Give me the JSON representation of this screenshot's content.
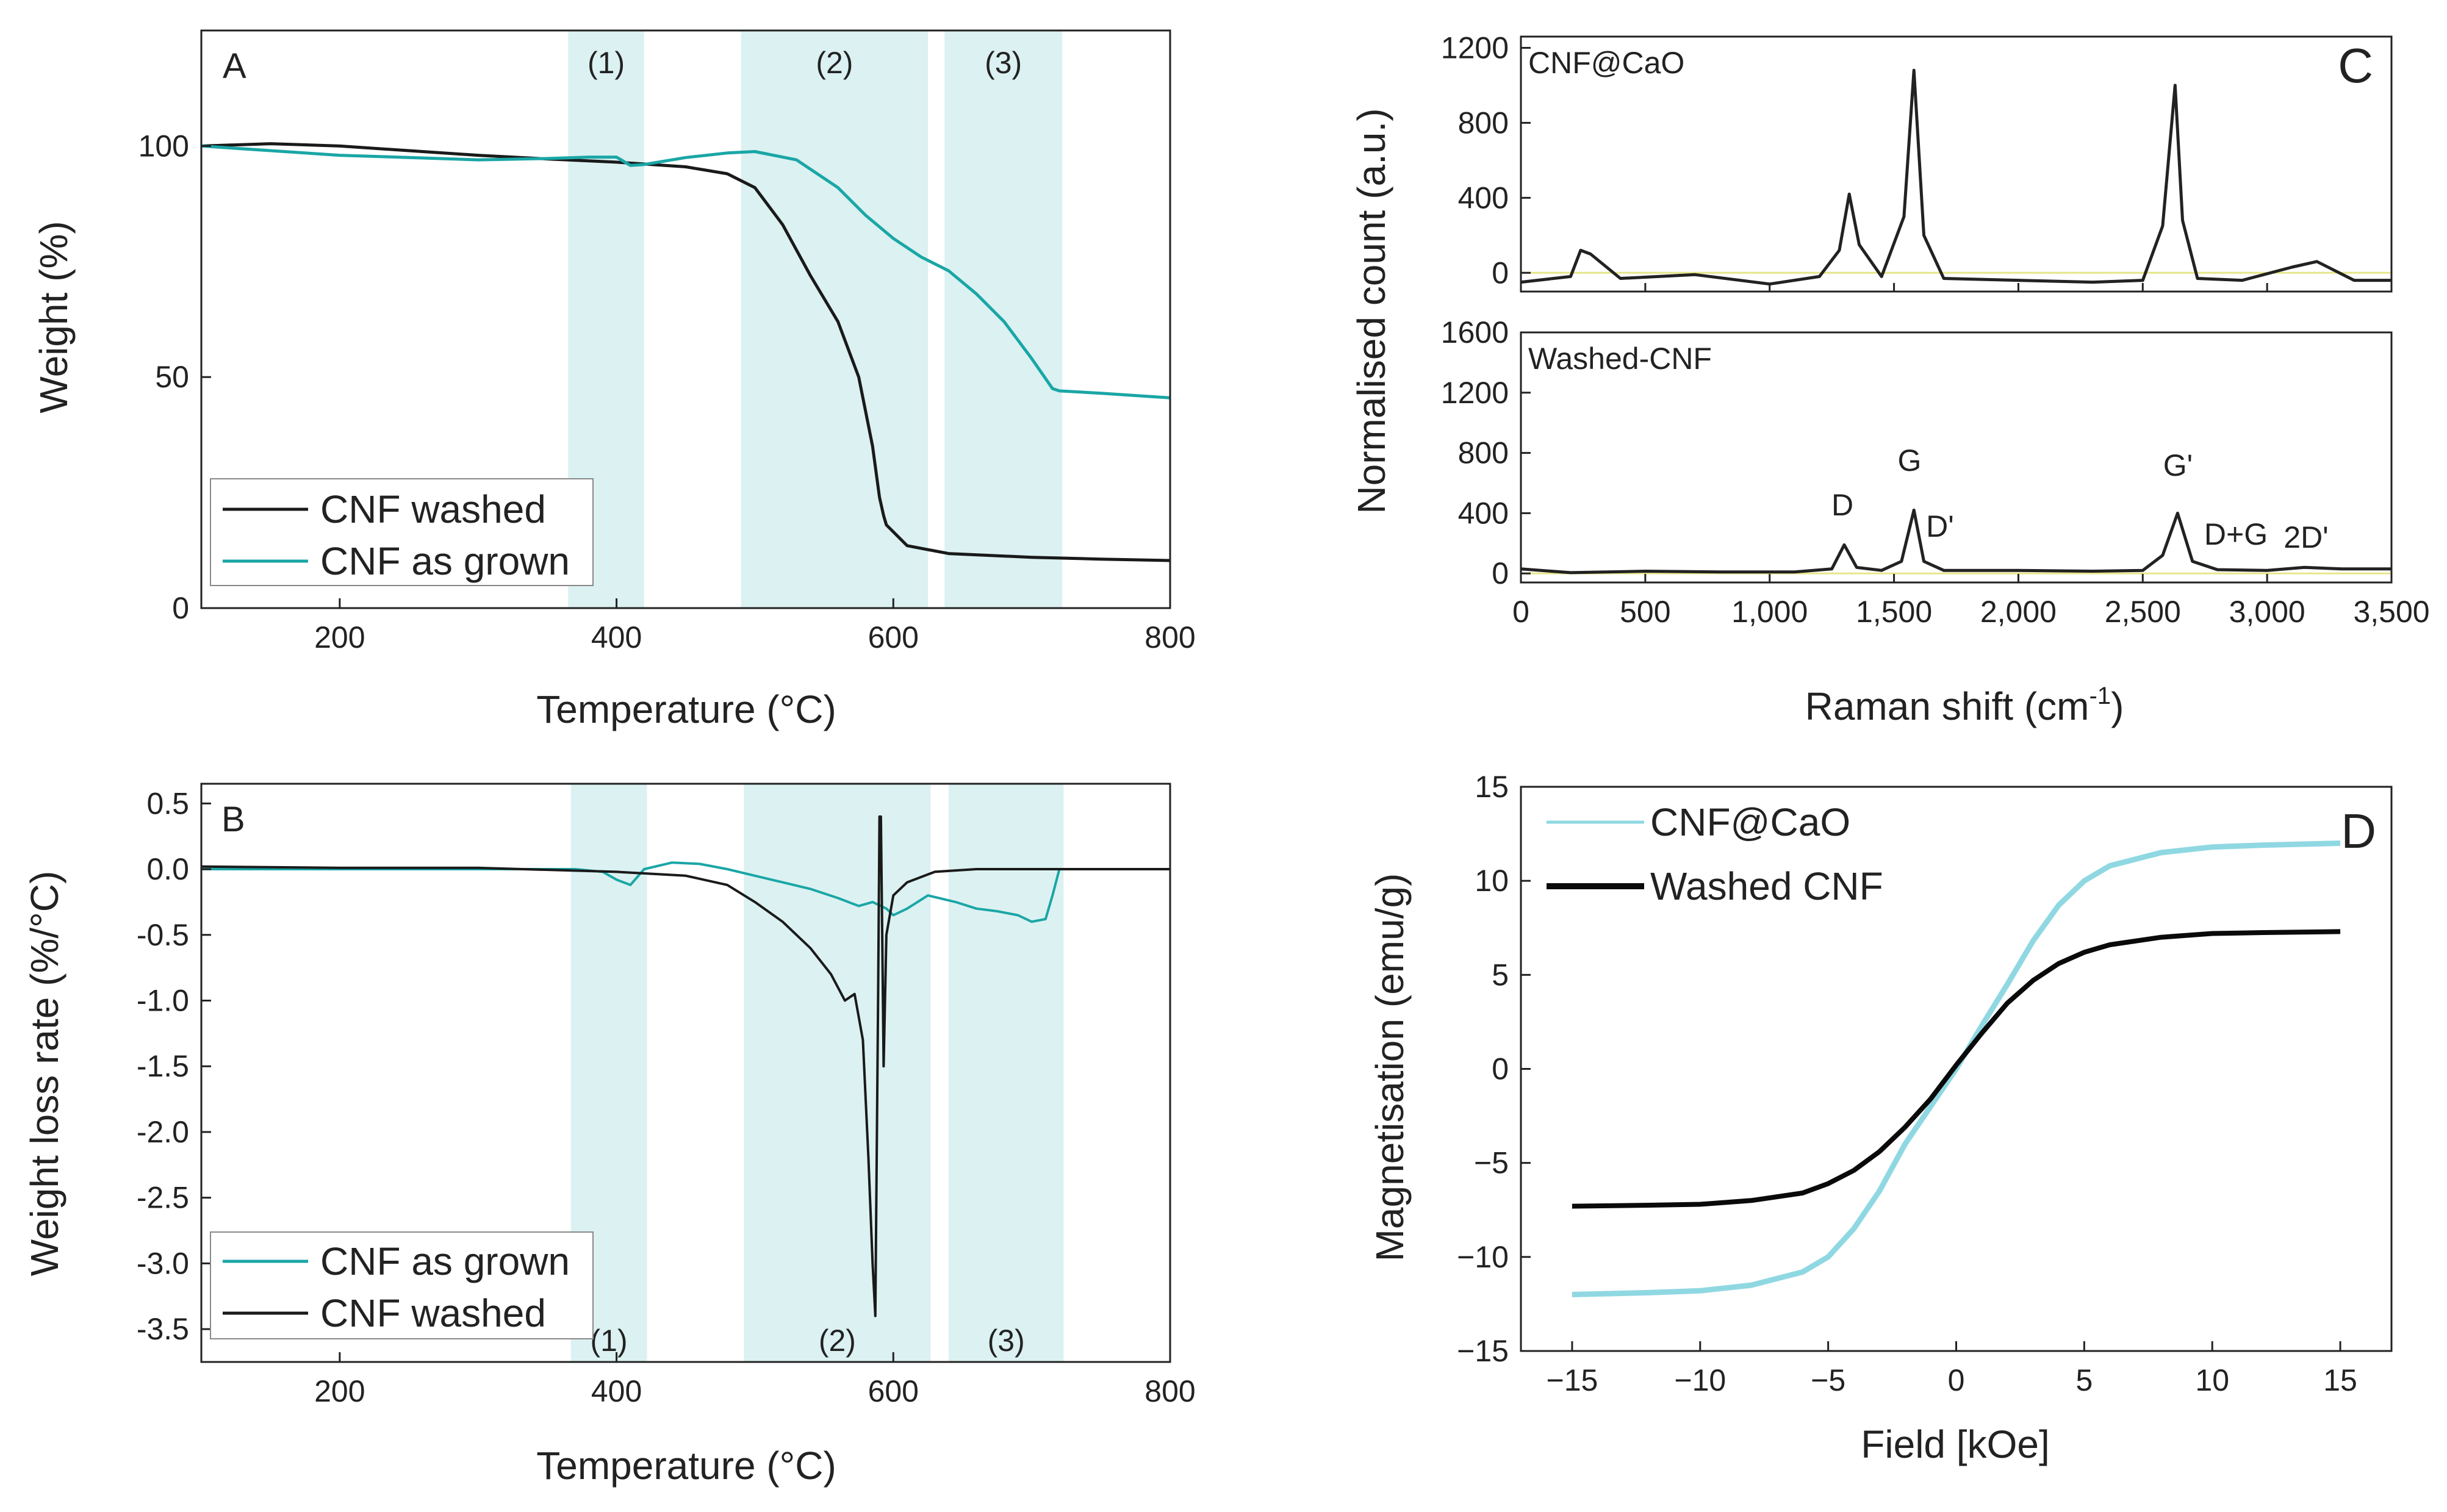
{
  "chart_data": [
    {
      "panel": "A",
      "type": "line",
      "panel_label": "A",
      "xlabel": "Temperature (°C)",
      "ylabel": "Weight (%)",
      "xlim": [
        100,
        800
      ],
      "ylim": [
        0,
        125
      ],
      "xticks": [
        200,
        400,
        600,
        800
      ],
      "yticks": [
        0,
        50,
        100
      ],
      "regions": [
        {
          "label": "(1)",
          "range": [
            365,
            420
          ]
        },
        {
          "label": "(2)",
          "range": [
            490,
            625
          ]
        },
        {
          "label": "(3)",
          "range": [
            637,
            722
          ]
        }
      ],
      "legend_position": "bottom-left",
      "series": [
        {
          "name": "CNF washed",
          "color": "#1a1a1a",
          "x": [
            100,
            150,
            200,
            250,
            300,
            350,
            400,
            450,
            480,
            500,
            520,
            540,
            560,
            575,
            585,
            590,
            593,
            595,
            610,
            640,
            700,
            750,
            800
          ],
          "y": [
            100,
            100.5,
            100,
            99,
            98,
            97.2,
            96.5,
            95.5,
            94,
            91,
            83,
            72,
            62,
            50,
            35,
            24,
            20,
            18,
            13.5,
            11.8,
            11,
            10.6,
            10.3
          ]
        },
        {
          "name": "CNF as grown",
          "color": "#1aa6a6",
          "x": [
            100,
            150,
            200,
            250,
            300,
            350,
            380,
            400,
            410,
            420,
            450,
            480,
            500,
            530,
            560,
            580,
            600,
            620,
            640,
            660,
            680,
            700,
            715,
            720,
            750,
            800
          ],
          "y": [
            100,
            99,
            98,
            97.5,
            97,
            97.3,
            97.6,
            97.6,
            95.8,
            96,
            97.5,
            98.5,
            98.8,
            97,
            91,
            85,
            80,
            76,
            73,
            68,
            62,
            54,
            47.5,
            47,
            46.5,
            45.5
          ]
        }
      ]
    },
    {
      "panel": "B",
      "type": "line",
      "panel_label": "B",
      "xlabel": "Temperature (°C)",
      "ylabel": "Weight loss rate (%/°C)",
      "xlim": [
        100,
        800
      ],
      "ylim": [
        -3.75,
        0.65
      ],
      "xticks": [
        200,
        400,
        600,
        800
      ],
      "yticks": [
        0.5,
        0.0,
        -0.5,
        -1.0,
        -1.5,
        -2.0,
        -2.5,
        -3.0,
        -3.5
      ],
      "ytick_labels": [
        "0.5",
        "0.0",
        "-0.5",
        "-1.0",
        "-1.5",
        "-2.0",
        "-2.5",
        "-3.0",
        "-3.5"
      ],
      "regions": [
        {
          "label": "(1)",
          "range": [
            367,
            422
          ]
        },
        {
          "label": "(2)",
          "range": [
            492,
            627
          ]
        },
        {
          "label": "(3)",
          "range": [
            640,
            723
          ]
        }
      ],
      "legend_position": "bottom-left",
      "series": [
        {
          "name": "CNF as grown",
          "color": "#1aa6a6",
          "x": [
            100,
            200,
            300,
            370,
            390,
            400,
            410,
            420,
            440,
            460,
            480,
            500,
            520,
            540,
            560,
            575,
            585,
            595,
            600,
            610,
            625,
            645,
            660,
            675,
            690,
            700,
            710,
            715,
            720,
            740,
            800
          ],
          "y": [
            0,
            0,
            0,
            0,
            -0.02,
            -0.08,
            -0.12,
            0,
            0.05,
            0.04,
            0,
            -0.05,
            -0.1,
            -0.15,
            -0.22,
            -0.28,
            -0.25,
            -0.3,
            -0.35,
            -0.3,
            -0.2,
            -0.25,
            -0.3,
            -0.32,
            -0.35,
            -0.4,
            -0.38,
            -0.2,
            0,
            0,
            0
          ]
        },
        {
          "name": "CNF washed",
          "color": "#1a1a1a",
          "x": [
            100,
            200,
            300,
            400,
            450,
            480,
            500,
            520,
            540,
            555,
            565,
            572,
            578,
            582,
            585,
            587,
            589,
            590,
            591,
            592,
            593,
            595,
            600,
            610,
            630,
            660,
            700,
            800
          ],
          "y": [
            0.02,
            0.01,
            0.01,
            -0.02,
            -0.05,
            -0.12,
            -0.25,
            -0.4,
            -0.6,
            -0.8,
            -1.0,
            -0.95,
            -1.3,
            -2.2,
            -3.0,
            -3.4,
            -1.0,
            0.4,
            0.4,
            -0.5,
            -1.5,
            -0.5,
            -0.2,
            -0.1,
            -0.02,
            0,
            0,
            0
          ]
        }
      ]
    },
    {
      "panel": "C",
      "type": "line",
      "panel_label": "C",
      "xlabel": "Raman shift (cm",
      "xlabel_sup": "-1",
      "xlabel_end": ")",
      "ylabel": "Normalised count (a.u.)",
      "xlim": [
        0,
        3500
      ],
      "xticks": [
        0,
        500,
        1000,
        1500,
        2000,
        2500,
        3000,
        3500
      ],
      "xtick_labels": [
        "0",
        "500",
        "1,000",
        "1,500",
        "2,000",
        "2,500",
        "3,000",
        "3,500"
      ],
      "subplots": [
        {
          "title": "CNF@CaO",
          "ylim": [
            -100,
            1260
          ],
          "yticks": [
            0,
            400,
            800,
            1200
          ],
          "ytick_labels": [
            "0",
            "400",
            "800",
            "1200"
          ],
          "series": [
            {
              "name": "CNF@CaO",
              "color": "#222222",
              "x": [
                0,
                200,
                240,
                280,
                400,
                700,
                1000,
                1200,
                1280,
                1320,
                1360,
                1450,
                1540,
                1580,
                1620,
                1700,
                2000,
                2300,
                2500,
                2580,
                2630,
                2660,
                2720,
                2900,
                3100,
                3200,
                3350,
                3500
              ],
              "y": [
                -50,
                -20,
                120,
                100,
                -30,
                -10,
                -60,
                -20,
                120,
                420,
                150,
                -20,
                300,
                1080,
                200,
                -30,
                -40,
                -50,
                -40,
                250,
                1000,
                280,
                -30,
                -40,
                30,
                60,
                -40,
                -40
              ]
            }
          ]
        },
        {
          "title": "Washed-CNF",
          "ylim": [
            -60,
            1600
          ],
          "yticks": [
            0,
            400,
            800,
            1200,
            1600
          ],
          "ytick_labels": [
            "0",
            "400",
            "800",
            "1200",
            "1600"
          ],
          "peaks": [
            "D",
            "G",
            "D'",
            "G'",
            "D+G",
            "2D'"
          ],
          "series": [
            {
              "name": "Washed-CNF",
              "color": "#222222",
              "x": [
                0,
                200,
                500,
                800,
                1100,
                1250,
                1300,
                1350,
                1450,
                1530,
                1580,
                1620,
                1700,
                2000,
                2300,
                2500,
                2580,
                2640,
                2700,
                2800,
                3000,
                3150,
                3300,
                3500
              ],
              "y": [
                30,
                5,
                15,
                10,
                10,
                30,
                190,
                40,
                20,
                80,
                420,
                80,
                20,
                20,
                15,
                20,
                120,
                400,
                80,
                25,
                20,
                40,
                30,
                30
              ]
            }
          ]
        }
      ]
    },
    {
      "panel": "D",
      "type": "line",
      "panel_label": "D",
      "xlabel": "Field [kOe]",
      "ylabel": "Magnetisation (emu/g)",
      "xlim": [
        -17,
        17
      ],
      "ylim": [
        -15,
        15
      ],
      "xticks": [
        -15,
        -10,
        -5,
        0,
        5,
        10,
        15
      ],
      "xtick_labels": [
        "−15",
        "−10",
        "−5",
        "0",
        "5",
        "10",
        "15"
      ],
      "yticks": [
        15,
        10,
        5,
        0,
        -5,
        -10,
        -15
      ],
      "ytick_labels": [
        "15",
        "10",
        "5",
        "0",
        "−5",
        "−10",
        "−15"
      ],
      "legend_position": "top-left",
      "series": [
        {
          "name": "CNF@CaO",
          "color": "#8fd8e2",
          "x": [
            -15,
            -12,
            -10,
            -8,
            -6,
            -5,
            -4,
            -3,
            -2,
            -1,
            0,
            1,
            2,
            3,
            4,
            5,
            6,
            8,
            10,
            12,
            15
          ],
          "y": [
            -12,
            -11.9,
            -11.8,
            -11.5,
            -10.8,
            -10,
            -8.5,
            -6.5,
            -4,
            -2,
            0,
            2.3,
            4.5,
            6.8,
            8.7,
            10,
            10.8,
            11.5,
            11.8,
            11.9,
            12
          ]
        },
        {
          "name": "Washed CNF",
          "color": "#0a0a0a",
          "x": [
            -15,
            -12,
            -10,
            -8,
            -6,
            -5,
            -4,
            -3,
            -2,
            -1,
            0,
            1,
            2,
            3,
            4,
            5,
            6,
            8,
            10,
            12,
            15
          ],
          "y": [
            -7.3,
            -7.25,
            -7.2,
            -7.0,
            -6.6,
            -6.1,
            -5.4,
            -4.4,
            -3.1,
            -1.6,
            0.2,
            1.9,
            3.5,
            4.7,
            5.6,
            6.2,
            6.6,
            7.0,
            7.2,
            7.25,
            7.3
          ]
        }
      ]
    }
  ]
}
